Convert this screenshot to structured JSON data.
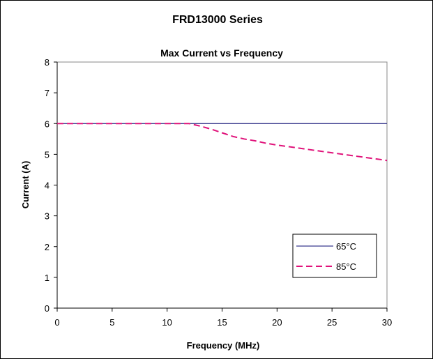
{
  "chart_data": {
    "type": "line",
    "title": "FRD13000 Series",
    "subtitle": "Max Current vs Frequency",
    "xlabel": "Frequency (MHz)",
    "ylabel": "Current (A)",
    "xlim": [
      0,
      30
    ],
    "ylim": [
      0,
      8
    ],
    "xticks": [
      0,
      5,
      10,
      15,
      20,
      25,
      30
    ],
    "yticks": [
      0,
      1,
      2,
      3,
      4,
      5,
      6,
      7,
      8
    ],
    "grid": false,
    "legend_position": "bottom-right",
    "series": [
      {
        "name": "65°C",
        "color": "#3b3b8f",
        "style": "solid",
        "x": [
          0,
          30
        ],
        "y": [
          6,
          6
        ]
      },
      {
        "name": "85°C",
        "color": "#e0127a",
        "style": "dashed",
        "x": [
          0,
          2,
          4,
          6,
          8,
          10,
          12,
          13,
          14,
          15,
          16,
          17,
          18,
          19,
          20,
          22,
          24,
          26,
          28,
          30
        ],
        "y": [
          6,
          6,
          6,
          6,
          6,
          6,
          6,
          5.92,
          5.82,
          5.7,
          5.58,
          5.5,
          5.44,
          5.36,
          5.3,
          5.2,
          5.1,
          5.0,
          4.9,
          4.8
        ]
      }
    ]
  }
}
